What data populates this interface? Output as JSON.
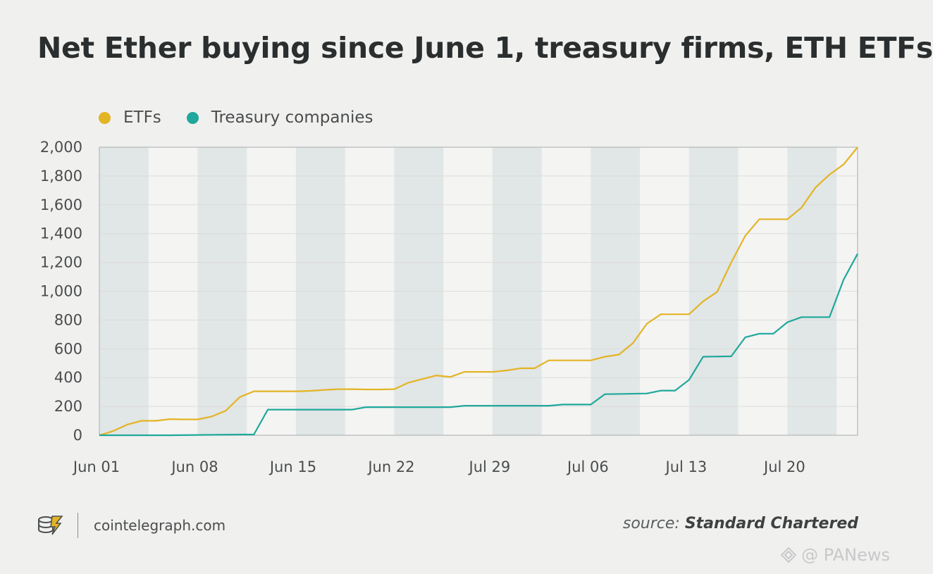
{
  "title": "Net Ether buying since June 1, treasury firms, ETH ETFs",
  "legend": [
    {
      "label": "ETFs",
      "color": "#e3b424"
    },
    {
      "label": "Treasury companies",
      "color": "#1fa89b"
    }
  ],
  "footer": {
    "site": "cointelegraph.com",
    "source_prefix": "source: ",
    "source_name": "Standard Chartered",
    "logo_icon": "cointelegraph-logo-icon"
  },
  "watermark": {
    "text": "@ PANews",
    "icon": "panews-diamond-icon"
  },
  "colors": {
    "band": "#e1e6e6",
    "grid": "#dcdcdc",
    "axis": "#a8adad",
    "background": "#f0f0ef"
  },
  "chart_data": {
    "type": "line",
    "x_unit": "days since Jun 01",
    "xlim": [
      0,
      54
    ],
    "ylim": [
      0,
      2000
    ],
    "yticks": [
      0,
      200,
      400,
      600,
      800,
      1000,
      1200,
      1400,
      1600,
      1800,
      2000
    ],
    "ytick_labels": [
      "0",
      "200",
      "400",
      "600",
      "800",
      "1,000",
      "1,200",
      "1,400",
      "1,600",
      "1,800",
      "2,000"
    ],
    "xticks": [
      0,
      7,
      14,
      21,
      28,
      35,
      42,
      49
    ],
    "xtick_labels": [
      "Jun 01",
      "Jun 08",
      "Jun 15",
      "Jun 22",
      "Jul 29",
      "Jul 06",
      "Jul 13",
      "Jul 20"
    ],
    "shaded_bands": [
      [
        0,
        3.5
      ],
      [
        7,
        10.5
      ],
      [
        14,
        17.5
      ],
      [
        21,
        24.5
      ],
      [
        28,
        31.5
      ],
      [
        35,
        38.5
      ],
      [
        42,
        45.5
      ],
      [
        49,
        52.5
      ]
    ],
    "grid": true,
    "legend_position": "top-left",
    "series": [
      {
        "name": "ETFs",
        "color": "#e3b424",
        "points": [
          [
            0,
            0
          ],
          [
            1,
            30
          ],
          [
            2,
            75
          ],
          [
            3,
            100
          ],
          [
            4,
            100
          ],
          [
            5,
            112
          ],
          [
            6,
            110
          ],
          [
            7,
            110
          ],
          [
            8,
            130
          ],
          [
            9,
            170
          ],
          [
            10,
            265
          ],
          [
            11,
            305
          ],
          [
            12,
            305
          ],
          [
            13,
            305
          ],
          [
            14,
            305
          ],
          [
            15,
            308
          ],
          [
            16,
            315
          ],
          [
            17,
            320
          ],
          [
            18,
            320
          ],
          [
            19,
            318
          ],
          [
            20,
            318
          ],
          [
            21,
            320
          ],
          [
            22,
            365
          ],
          [
            23,
            390
          ],
          [
            24,
            415
          ],
          [
            25,
            405
          ],
          [
            26,
            440
          ],
          [
            27,
            440
          ],
          [
            28,
            440
          ],
          [
            29,
            450
          ],
          [
            30,
            465
          ],
          [
            31,
            465
          ],
          [
            32,
            520
          ],
          [
            33,
            520
          ],
          [
            34,
            520
          ],
          [
            35,
            520
          ],
          [
            36,
            545
          ],
          [
            37,
            560
          ],
          [
            38,
            640
          ],
          [
            39,
            775
          ],
          [
            40,
            840
          ],
          [
            41,
            840
          ],
          [
            42,
            840
          ],
          [
            43,
            930
          ],
          [
            44,
            995
          ],
          [
            45,
            1200
          ],
          [
            46,
            1385
          ],
          [
            47,
            1500
          ],
          [
            48,
            1500
          ],
          [
            49,
            1500
          ],
          [
            50,
            1580
          ],
          [
            51,
            1720
          ],
          [
            52,
            1810
          ],
          [
            53,
            1880
          ],
          [
            54,
            2000
          ]
        ]
      },
      {
        "name": "Treasury companies",
        "color": "#1fa89b",
        "points": [
          [
            0,
            0
          ],
          [
            5,
            0
          ],
          [
            10,
            5
          ],
          [
            11,
            5
          ],
          [
            12,
            178
          ],
          [
            13,
            178
          ],
          [
            18,
            178
          ],
          [
            19,
            195
          ],
          [
            25,
            195
          ],
          [
            26,
            205
          ],
          [
            32,
            205
          ],
          [
            33,
            213
          ],
          [
            35,
            213
          ],
          [
            36,
            285
          ],
          [
            39,
            290
          ],
          [
            40,
            310
          ],
          [
            41,
            310
          ],
          [
            42,
            385
          ],
          [
            43,
            545
          ],
          [
            45,
            548
          ],
          [
            46,
            680
          ],
          [
            47,
            705
          ],
          [
            48,
            705
          ],
          [
            49,
            785
          ],
          [
            50,
            820
          ],
          [
            52,
            820
          ],
          [
            53,
            1080
          ],
          [
            54,
            1260
          ]
        ]
      }
    ]
  }
}
